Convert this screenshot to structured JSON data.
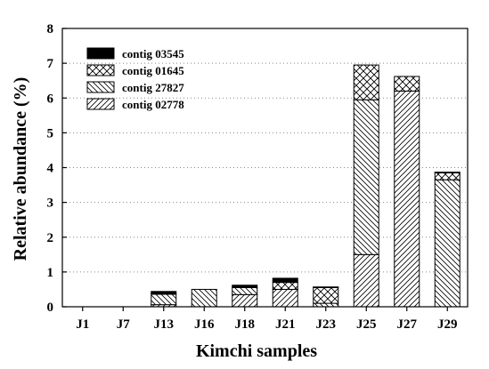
{
  "chart_data": {
    "type": "bar",
    "stacked": true,
    "xlabel": "Kimchi samples",
    "ylabel": "Relative abundance (%)",
    "ylim": [
      0,
      8
    ],
    "yticks": [
      "0",
      "1",
      "2",
      "3",
      "4",
      "5",
      "6",
      "7",
      "8"
    ],
    "grid": "horizontal dotted",
    "legend_position": "top-left",
    "categories": [
      "J1",
      "J7",
      "J13",
      "J16",
      "J18",
      "J21",
      "J23",
      "J25",
      "J27",
      "J29"
    ],
    "series": [
      {
        "name": "contig 02778",
        "pattern": "hatch-forward",
        "values": [
          0,
          0,
          0.06,
          0.0,
          0.35,
          0.5,
          0.0,
          1.5,
          6.2,
          0.0
        ]
      },
      {
        "name": "contig 27827",
        "pattern": "hatch-back",
        "values": [
          0,
          0,
          0.3,
          0.5,
          0.2,
          0.0,
          0.1,
          4.45,
          0.0,
          3.65
        ]
      },
      {
        "name": "contig 01645",
        "pattern": "crosshatch",
        "values": [
          0,
          0,
          0.0,
          0.0,
          0.0,
          0.2,
          0.45,
          1.0,
          0.42,
          0.2
        ]
      },
      {
        "name": "contig 03545",
        "pattern": "solid-black",
        "values": [
          0,
          0,
          0.08,
          0.0,
          0.07,
          0.12,
          0.02,
          0.0,
          0.0,
          0.02
        ]
      }
    ]
  }
}
